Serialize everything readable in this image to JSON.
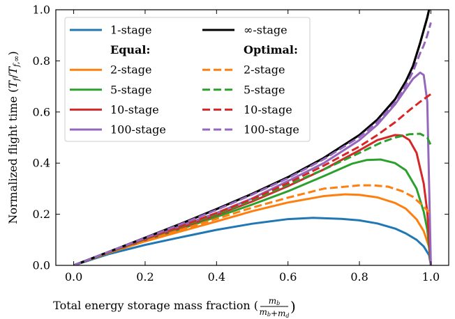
{
  "chart_data": {
    "type": "line",
    "xlabel": "Total energy storage mass fraction",
    "xlabel_fraction": {
      "numerator": "m_b",
      "denominator": "m_b+m_d"
    },
    "ylabel": "Normalized flight time (T_f/T_{f,∞})",
    "xlim": [
      -0.05,
      1.05
    ],
    "ylim": [
      0.0,
      1.0
    ],
    "x_ticks": [
      0.0,
      0.2,
      0.4,
      0.6,
      0.8,
      1.0
    ],
    "x_tick_labels": [
      "0.0",
      "0.2",
      "0.4",
      "0.6",
      "0.8",
      "1.0"
    ],
    "y_ticks": [
      0.0,
      0.2,
      0.4,
      0.6,
      0.8,
      1.0
    ],
    "y_tick_labels": [
      "0.0",
      "0.2",
      "0.4",
      "0.6",
      "0.8",
      "1.0"
    ],
    "grid": false,
    "legend": {
      "placement": "upper-left",
      "columns": 2,
      "left": [
        {
          "kind": "line",
          "label": "1-stage",
          "series": "1-stage"
        },
        {
          "kind": "header",
          "label": "Equal:"
        },
        {
          "kind": "line",
          "label": "2-stage",
          "series": "Equal 2-stage"
        },
        {
          "kind": "line",
          "label": "5-stage",
          "series": "Equal 5-stage"
        },
        {
          "kind": "line",
          "label": "10-stage",
          "series": "Equal 10-stage"
        },
        {
          "kind": "line",
          "label": "100-stage",
          "series": "Equal 100-stage"
        }
      ],
      "right": [
        {
          "kind": "line",
          "label": "∞-stage",
          "series": "∞-stage"
        },
        {
          "kind": "header",
          "label": "Optimal:"
        },
        {
          "kind": "line",
          "label": "2-stage",
          "series": "Optimal 2-stage"
        },
        {
          "kind": "line",
          "label": "5-stage",
          "series": "Optimal 5-stage"
        },
        {
          "kind": "line",
          "label": "10-stage",
          "series": "Optimal 10-stage"
        },
        {
          "kind": "line",
          "label": "100-stage",
          "series": "Optimal 100-stage"
        }
      ]
    },
    "series": [
      {
        "name": "1-stage",
        "color": "#1f77b4",
        "dash": "solid",
        "x": [
          0,
          0.1,
          0.2,
          0.3,
          0.4,
          0.5,
          0.6,
          0.67,
          0.75,
          0.8,
          0.85,
          0.9,
          0.93,
          0.96,
          0.98,
          0.995,
          1.0
        ],
        "y": [
          0,
          0.045,
          0.08,
          0.11,
          0.139,
          0.163,
          0.181,
          0.186,
          0.182,
          0.176,
          0.164,
          0.144,
          0.125,
          0.1,
          0.074,
          0.04,
          0.0
        ]
      },
      {
        "name": "Equal 2-stage",
        "color": "#ff7f0e",
        "dash": "solid",
        "x": [
          0,
          0.1,
          0.2,
          0.3,
          0.4,
          0.5,
          0.6,
          0.7,
          0.76,
          0.8,
          0.85,
          0.9,
          0.93,
          0.96,
          0.98,
          0.995,
          1.0
        ],
        "y": [
          0,
          0.05,
          0.094,
          0.133,
          0.172,
          0.212,
          0.246,
          0.271,
          0.278,
          0.276,
          0.266,
          0.244,
          0.222,
          0.18,
          0.134,
          0.072,
          0.0
        ]
      },
      {
        "name": "Equal 5-stage",
        "color": "#2ca02c",
        "dash": "solid",
        "x": [
          0,
          0.1,
          0.2,
          0.3,
          0.4,
          0.5,
          0.6,
          0.7,
          0.78,
          0.82,
          0.86,
          0.9,
          0.93,
          0.96,
          0.98,
          0.99,
          1.0
        ],
        "y": [
          0,
          0.052,
          0.099,
          0.142,
          0.19,
          0.238,
          0.29,
          0.349,
          0.398,
          0.412,
          0.414,
          0.4,
          0.372,
          0.3,
          0.21,
          0.14,
          0.0
        ]
      },
      {
        "name": "Equal 10-stage",
        "color": "#d62728",
        "dash": "solid",
        "x": [
          0,
          0.1,
          0.2,
          0.3,
          0.4,
          0.5,
          0.6,
          0.7,
          0.8,
          0.85,
          0.9,
          0.92,
          0.94,
          0.96,
          0.98,
          0.99,
          1.0
        ],
        "y": [
          0,
          0.052,
          0.1,
          0.147,
          0.197,
          0.25,
          0.31,
          0.375,
          0.45,
          0.49,
          0.51,
          0.508,
          0.49,
          0.44,
          0.32,
          0.21,
          0.0
        ]
      },
      {
        "name": "Equal 100-stage",
        "color": "#9467bd",
        "dash": "solid",
        "x": [
          0,
          0.1,
          0.2,
          0.3,
          0.4,
          0.5,
          0.6,
          0.7,
          0.8,
          0.85,
          0.9,
          0.93,
          0.95,
          0.97,
          0.98,
          0.99,
          1.0
        ],
        "y": [
          0,
          0.053,
          0.105,
          0.155,
          0.205,
          0.262,
          0.33,
          0.4,
          0.49,
          0.55,
          0.63,
          0.69,
          0.73,
          0.754,
          0.745,
          0.64,
          0.0
        ]
      },
      {
        "name": "∞-stage",
        "color": "#000000",
        "dash": "solid",
        "x": [
          0,
          0.1,
          0.2,
          0.3,
          0.4,
          0.5,
          0.6,
          0.7,
          0.8,
          0.85,
          0.9,
          0.93,
          0.95,
          0.97,
          0.98,
          0.99,
          0.995
        ],
        "y": [
          0,
          0.054,
          0.108,
          0.163,
          0.22,
          0.28,
          0.345,
          0.42,
          0.51,
          0.57,
          0.65,
          0.72,
          0.78,
          0.87,
          0.92,
          0.97,
          1.0
        ]
      },
      {
        "name": "Optimal 2-stage",
        "color": "#ff7f0e",
        "dash": "dashed",
        "x": [
          0,
          0.1,
          0.2,
          0.3,
          0.4,
          0.5,
          0.6,
          0.7,
          0.8,
          0.84,
          0.88,
          0.92,
          0.95,
          0.98,
          1.0
        ],
        "y": [
          0,
          0.05,
          0.097,
          0.139,
          0.182,
          0.226,
          0.265,
          0.3,
          0.313,
          0.313,
          0.308,
          0.29,
          0.268,
          0.23,
          0.2
        ]
      },
      {
        "name": "Optimal 5-stage",
        "color": "#2ca02c",
        "dash": "dashed",
        "x": [
          0,
          0.1,
          0.2,
          0.3,
          0.4,
          0.5,
          0.6,
          0.7,
          0.8,
          0.86,
          0.9,
          0.94,
          0.97,
          0.99,
          1.0
        ],
        "y": [
          0,
          0.052,
          0.102,
          0.15,
          0.2,
          0.255,
          0.315,
          0.375,
          0.44,
          0.48,
          0.5,
          0.513,
          0.515,
          0.5,
          0.47
        ]
      },
      {
        "name": "Optimal 10-stage",
        "color": "#d62728",
        "dash": "dashed",
        "x": [
          0,
          0.1,
          0.2,
          0.3,
          0.4,
          0.5,
          0.6,
          0.7,
          0.8,
          0.85,
          0.9,
          0.94,
          0.97,
          0.99,
          1.0
        ],
        "y": [
          0,
          0.053,
          0.104,
          0.153,
          0.205,
          0.26,
          0.322,
          0.39,
          0.465,
          0.51,
          0.56,
          0.607,
          0.64,
          0.66,
          0.67
        ]
      },
      {
        "name": "Optimal 100-stage",
        "color": "#9467bd",
        "dash": "dashed",
        "x": [
          0,
          0.1,
          0.2,
          0.3,
          0.4,
          0.5,
          0.6,
          0.7,
          0.8,
          0.85,
          0.9,
          0.93,
          0.95,
          0.97,
          0.98,
          0.99,
          1.0
        ],
        "y": [
          0,
          0.054,
          0.107,
          0.161,
          0.217,
          0.277,
          0.341,
          0.415,
          0.502,
          0.56,
          0.638,
          0.705,
          0.758,
          0.83,
          0.86,
          0.9,
          0.95
        ]
      }
    ]
  }
}
